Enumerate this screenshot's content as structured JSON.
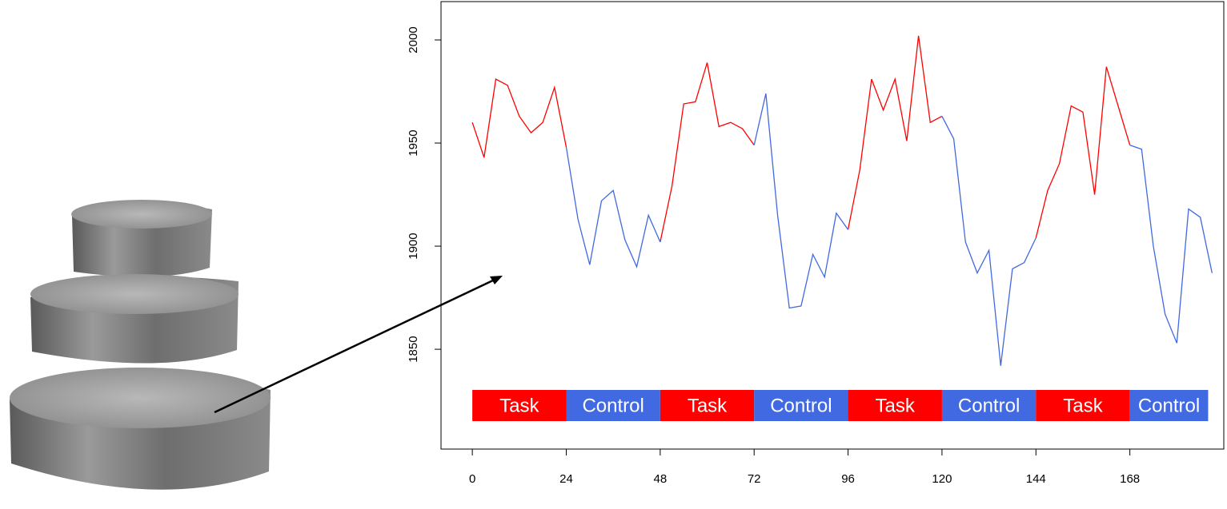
{
  "chart_data": {
    "type": "line",
    "x": [
      0,
      3,
      6,
      9,
      12,
      15,
      18,
      21,
      24,
      27,
      30,
      33,
      36,
      39,
      42,
      45,
      48,
      51,
      54,
      57,
      60,
      63,
      66,
      69,
      72,
      75,
      78,
      81,
      84,
      87,
      90,
      93,
      96,
      99,
      102,
      105,
      108,
      111,
      114,
      117,
      120,
      123,
      126,
      129,
      132,
      135,
      138,
      141,
      144,
      147,
      150,
      153,
      156,
      159,
      162,
      165,
      168,
      171,
      174,
      177,
      180,
      183,
      186,
      189
    ],
    "series": [
      {
        "color": "#ff0000",
        "values": [
          1960,
          1943,
          1981,
          1978,
          1963,
          1955,
          1960,
          1977,
          1948,
          null,
          null,
          null,
          null,
          null,
          null,
          null,
          1902,
          1929,
          1969,
          1970,
          1989,
          1958,
          1960,
          1957,
          1949,
          null,
          null,
          null,
          null,
          null,
          null,
          null,
          1908,
          1937,
          1981,
          1966,
          1981,
          1951,
          2002,
          1960,
          1963,
          null,
          null,
          null,
          null,
          null,
          null,
          null,
          1904,
          1927,
          1940,
          1968,
          1965,
          1925,
          1987,
          1968,
          1949,
          null,
          null,
          null,
          null,
          null,
          null,
          null
        ]
      },
      {
        "color": "#4169e1",
        "values": [
          null,
          null,
          null,
          null,
          null,
          null,
          null,
          null,
          1948,
          1913,
          1891,
          1922,
          1927,
          1903,
          1890,
          1915,
          1902,
          null,
          null,
          null,
          null,
          null,
          null,
          null,
          1949,
          1974,
          1915,
          1870,
          1871,
          1896,
          1885,
          1916,
          1908,
          null,
          null,
          null,
          null,
          null,
          null,
          null,
          1963,
          1952,
          1902,
          1887,
          1898,
          1842,
          1889,
          1892,
          1904,
          null,
          null,
          null,
          null,
          null,
          null,
          null,
          1949,
          1947,
          1900,
          1867,
          1853,
          1918,
          1914,
          1887
        ]
      }
    ],
    "blocks": [
      {
        "label": "Task",
        "start": 0,
        "end": 24,
        "color": "#ff0000"
      },
      {
        "label": "Control",
        "start": 24,
        "end": 48,
        "color": "#4169e1"
      },
      {
        "label": "Task",
        "start": 48,
        "end": 72,
        "color": "#ff0000"
      },
      {
        "label": "Control",
        "start": 72,
        "end": 96,
        "color": "#4169e1"
      },
      {
        "label": "Task",
        "start": 96,
        "end": 120,
        "color": "#ff0000"
      },
      {
        "label": "Control",
        "start": 120,
        "end": 144,
        "color": "#4169e1"
      },
      {
        "label": "Task",
        "start": 144,
        "end": 168,
        "color": "#ff0000"
      },
      {
        "label": "Control",
        "start": 168,
        "end": 188,
        "color": "#4169e1"
      }
    ],
    "xlim": [
      -8,
      192
    ],
    "ylim": [
      1801.6,
      2018.6
    ],
    "xticks": [
      0,
      24,
      48,
      72,
      96,
      120,
      144,
      168
    ],
    "yticks": [
      1850,
      1900,
      1950,
      2000
    ]
  }
}
